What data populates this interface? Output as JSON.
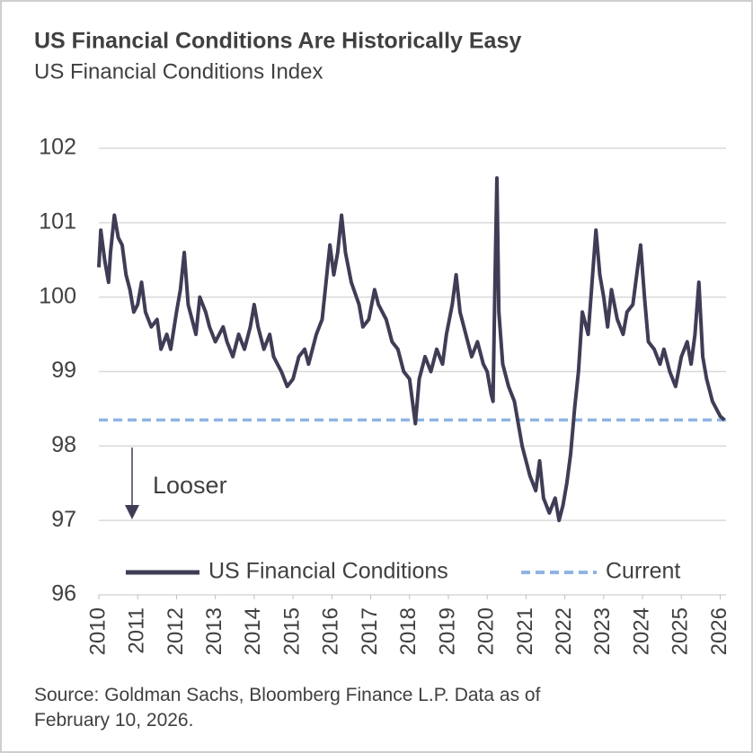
{
  "chart_data": {
    "type": "line",
    "title": "US Financial Conditions Are Historically Easy",
    "subtitle": "US Financial Conditions Index",
    "source": "Source: Goldman Sachs, Bloomberg Finance L.P. Data as of February 10, 2026.",
    "annotations": [
      {
        "text": "Looser"
      }
    ],
    "x": [
      2010.0,
      2010.05,
      2010.15,
      2010.25,
      2010.3,
      2010.4,
      2010.5,
      2010.6,
      2010.7,
      2010.8,
      2010.9,
      2011.0,
      2011.1,
      2011.2,
      2011.35,
      2011.5,
      2011.6,
      2011.75,
      2011.85,
      2012.0,
      2012.1,
      2012.2,
      2012.3,
      2012.4,
      2012.5,
      2012.6,
      2012.75,
      2012.85,
      2013.0,
      2013.2,
      2013.3,
      2013.45,
      2013.6,
      2013.75,
      2013.9,
      2014.0,
      2014.1,
      2014.25,
      2014.4,
      2014.5,
      2014.7,
      2014.85,
      2015.0,
      2015.15,
      2015.3,
      2015.4,
      2015.6,
      2015.75,
      2015.85,
      2015.95,
      2016.05,
      2016.15,
      2016.25,
      2016.35,
      2016.5,
      2016.7,
      2016.8,
      2016.95,
      2017.1,
      2017.2,
      2017.4,
      2017.55,
      2017.7,
      2017.85,
      2018.0,
      2018.1,
      2018.15,
      2018.25,
      2018.4,
      2018.55,
      2018.7,
      2018.85,
      2018.95,
      2019.1,
      2019.2,
      2019.3,
      2019.45,
      2019.6,
      2019.75,
      2019.9,
      2020.0,
      2020.1,
      2020.15,
      2020.2,
      2020.25,
      2020.3,
      2020.4,
      2020.55,
      2020.7,
      2020.8,
      2020.9,
      2021.0,
      2021.1,
      2021.25,
      2021.35,
      2021.45,
      2021.6,
      2021.75,
      2021.85,
      2021.95,
      2022.05,
      2022.15,
      2022.25,
      2022.35,
      2022.45,
      2022.6,
      2022.7,
      2022.8,
      2022.9,
      2023.0,
      2023.1,
      2023.2,
      2023.35,
      2023.5,
      2023.6,
      2023.75,
      2023.85,
      2023.95,
      2024.05,
      2024.15,
      2024.3,
      2024.45,
      2024.55,
      2024.7,
      2024.85,
      2025.0,
      2025.15,
      2025.25,
      2025.35,
      2025.45,
      2025.55,
      2025.65,
      2025.8,
      2025.9,
      2026.0,
      2026.11
    ],
    "series": [
      {
        "name": "US Financial Conditions",
        "color": "#3f3d56",
        "values": [
          100.4,
          100.9,
          100.5,
          100.2,
          100.6,
          101.1,
          100.8,
          100.7,
          100.3,
          100.1,
          99.8,
          99.9,
          100.2,
          99.8,
          99.6,
          99.7,
          99.3,
          99.5,
          99.3,
          99.8,
          100.1,
          100.6,
          99.9,
          99.7,
          99.5,
          100.0,
          99.8,
          99.6,
          99.4,
          99.6,
          99.4,
          99.2,
          99.5,
          99.3,
          99.6,
          99.9,
          99.6,
          99.3,
          99.5,
          99.2,
          99.0,
          98.8,
          98.9,
          99.2,
          99.3,
          99.1,
          99.5,
          99.7,
          100.2,
          100.7,
          100.3,
          100.6,
          101.1,
          100.6,
          100.2,
          99.9,
          99.6,
          99.7,
          100.1,
          99.9,
          99.7,
          99.4,
          99.3,
          99.0,
          98.9,
          98.5,
          98.3,
          98.9,
          99.2,
          99.0,
          99.3,
          99.1,
          99.5,
          99.9,
          100.3,
          99.8,
          99.5,
          99.2,
          99.4,
          99.1,
          99.0,
          98.7,
          98.6,
          100.2,
          101.6,
          99.8,
          99.1,
          98.8,
          98.6,
          98.3,
          98.0,
          97.8,
          97.6,
          97.4,
          97.8,
          97.3,
          97.1,
          97.3,
          97.0,
          97.2,
          97.5,
          97.9,
          98.5,
          99.0,
          99.8,
          99.5,
          100.2,
          100.9,
          100.3,
          100.0,
          99.6,
          100.1,
          99.7,
          99.5,
          99.8,
          99.9,
          100.3,
          100.7,
          100.0,
          99.4,
          99.3,
          99.1,
          99.3,
          99.0,
          98.8,
          99.2,
          99.4,
          99.1,
          99.5,
          100.2,
          99.2,
          98.9,
          98.6,
          98.5,
          98.4,
          98.35
        ]
      }
    ],
    "hlines": [
      {
        "name": "Current",
        "value": 98.35,
        "color": "#8fb4e3"
      }
    ],
    "xlim": [
      2010,
      2026.15
    ],
    "xticks": [
      2010,
      2011,
      2012,
      2013,
      2014,
      2015,
      2016,
      2017,
      2018,
      2019,
      2020,
      2021,
      2022,
      2023,
      2024,
      2025,
      2026
    ],
    "ylim": [
      96,
      102
    ],
    "yticks": [
      96,
      97,
      98,
      99,
      100,
      101,
      102
    ],
    "grid": true,
    "legend": "bottom"
  }
}
